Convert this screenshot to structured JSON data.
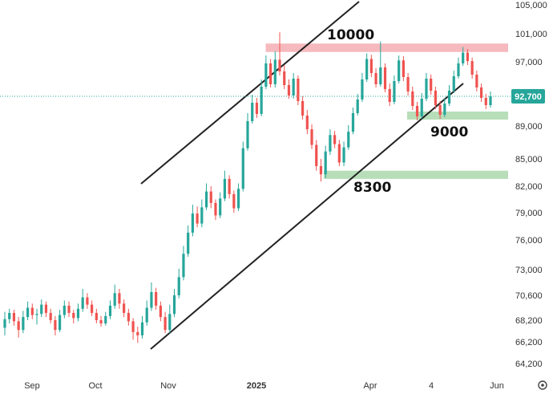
{
  "chart_data": {
    "type": "candlestick",
    "title": "",
    "xlabel": "",
    "ylabel": "",
    "ylim": [
      62000,
      106000
    ],
    "x_ticks": [
      "Sep",
      "Oct",
      "Nov",
      "2025",
      "Apr",
      "4",
      "Jun"
    ],
    "y_ticks": [
      "105,000",
      "101,000",
      "97,000",
      "92,700",
      "89,000",
      "85,000",
      "82,000",
      "79,000",
      "76,000",
      "73,000",
      "70,600",
      "68,200",
      "66,200",
      "64,200"
    ],
    "y_tick_values": [
      105000,
      101000,
      97000,
      92700,
      89000,
      85000,
      82000,
      79000,
      76000,
      73000,
      70600,
      68200,
      66200,
      64200
    ],
    "last_price": 92700,
    "last_price_label": "92,700",
    "colors": {
      "up": "#26a69a",
      "down": "#ef5350",
      "resistance": "#f4a7ad",
      "support": "#a5d6a7",
      "price_line": "#26a69a",
      "channel": "#222222"
    },
    "zones": [
      {
        "name": "resistance-zone",
        "low": 98400,
        "high": 99600,
        "kind": "resistance",
        "from": 0.52,
        "to": 1.0
      },
      {
        "name": "support-zone-9000",
        "low": 89800,
        "high": 90800,
        "kind": "support",
        "from": 0.8,
        "to": 1.0
      },
      {
        "name": "support-zone-8300",
        "low": 82800,
        "high": 83700,
        "kind": "support",
        "from": 0.635,
        "to": 1.0
      }
    ],
    "annotations": [
      "10000",
      "9000",
      "8300"
    ],
    "candles": [
      [
        67500,
        68300,
        66800,
        69000
      ],
      [
        68300,
        68900,
        67900,
        69300
      ],
      [
        68900,
        68100,
        67700,
        69200
      ],
      [
        68100,
        67300,
        66600,
        68500
      ],
      [
        67300,
        68500,
        67000,
        69100
      ],
      [
        68500,
        69400,
        68200,
        70000
      ],
      [
        69400,
        68700,
        68300,
        69800
      ],
      [
        68700,
        68800,
        67800,
        69300
      ],
      [
        68800,
        69700,
        68500,
        70200
      ],
      [
        69700,
        68900,
        68500,
        70000
      ],
      [
        68900,
        68200,
        67900,
        69300
      ],
      [
        68200,
        67300,
        66800,
        68600
      ],
      [
        67300,
        68700,
        67100,
        69200
      ],
      [
        68700,
        69600,
        68400,
        70100
      ],
      [
        69600,
        68900,
        68500,
        70000
      ],
      [
        68900,
        68400,
        67900,
        69200
      ],
      [
        68400,
        69300,
        68100,
        69800
      ],
      [
        69300,
        70400,
        69000,
        71200
      ],
      [
        70400,
        69700,
        69300,
        70800
      ],
      [
        69700,
        68900,
        68600,
        70100
      ],
      [
        68900,
        68200,
        67900,
        69300
      ],
      [
        68200,
        67900,
        67600,
        68600
      ],
      [
        67900,
        68600,
        67700,
        69000
      ],
      [
        68600,
        69600,
        68300,
        70100
      ],
      [
        69600,
        70800,
        69300,
        71600
      ],
      [
        70800,
        69800,
        69300,
        71200
      ],
      [
        69800,
        68900,
        68500,
        70200
      ],
      [
        68900,
        68100,
        67700,
        69300
      ],
      [
        68100,
        67100,
        66400,
        68400
      ],
      [
        67100,
        66800,
        66100,
        67600
      ],
      [
        66800,
        68000,
        66500,
        68600
      ],
      [
        68000,
        69400,
        67700,
        70100
      ],
      [
        69400,
        70900,
        69100,
        71800
      ],
      [
        70900,
        69600,
        69200,
        71300
      ],
      [
        69600,
        68500,
        68100,
        70000
      ],
      [
        68500,
        67300,
        67000,
        69000
      ],
      [
        67300,
        68800,
        67000,
        69700
      ],
      [
        68800,
        70600,
        68500,
        71200
      ],
      [
        70600,
        72300,
        70300,
        73100
      ],
      [
        72300,
        74600,
        72000,
        75400
      ],
      [
        74600,
        76800,
        74300,
        77600
      ],
      [
        76800,
        78900,
        76400,
        79900
      ],
      [
        78900,
        77800,
        77400,
        79700
      ],
      [
        77800,
        79600,
        77400,
        80500
      ],
      [
        79600,
        81400,
        79300,
        82300
      ],
      [
        81400,
        80100,
        79500,
        82000
      ],
      [
        80100,
        78700,
        78200,
        80500
      ],
      [
        78700,
        80600,
        78400,
        81300
      ],
      [
        80600,
        82800,
        80300,
        83700
      ],
      [
        82800,
        81100,
        80600,
        83200
      ],
      [
        81100,
        79500,
        79000,
        81500
      ],
      [
        79500,
        81700,
        79200,
        82300
      ],
      [
        81700,
        86300,
        81400,
        87100
      ],
      [
        86300,
        89600,
        86000,
        90600
      ],
      [
        89600,
        91900,
        89300,
        92900
      ],
      [
        91900,
        90500,
        90000,
        92500
      ],
      [
        90500,
        93900,
        90200,
        94800
      ],
      [
        93900,
        96800,
        93600,
        97900
      ],
      [
        96800,
        94200,
        93800,
        97400
      ],
      [
        94200,
        97300,
        93800,
        98500
      ],
      [
        97300,
        95800,
        95300,
        101200
      ],
      [
        95800,
        94100,
        93600,
        96600
      ],
      [
        94100,
        92800,
        92400,
        94800
      ],
      [
        92800,
        94900,
        92400,
        95600
      ],
      [
        94900,
        92100,
        91600,
        95300
      ],
      [
        92100,
        90300,
        89800,
        92700
      ],
      [
        90300,
        88600,
        88000,
        91000
      ],
      [
        88600,
        86700,
        86200,
        89200
      ],
      [
        86700,
        84200,
        83700,
        87300
      ],
      [
        84200,
        83300,
        82500,
        85000
      ],
      [
        83300,
        85900,
        82900,
        86600
      ],
      [
        85900,
        87900,
        85500,
        88600
      ],
      [
        87900,
        86800,
        86300,
        88400
      ],
      [
        86800,
        84600,
        84200,
        87300
      ],
      [
        84600,
        86400,
        84200,
        87100
      ],
      [
        86400,
        88300,
        86100,
        89100
      ],
      [
        88300,
        90600,
        88000,
        91300
      ],
      [
        90600,
        92300,
        90300,
        93000
      ],
      [
        92300,
        94800,
        92000,
        95600
      ],
      [
        94800,
        97400,
        94500,
        98200
      ],
      [
        97400,
        95600,
        95100,
        98000
      ],
      [
        95600,
        94200,
        93800,
        96200
      ],
      [
        94200,
        96300,
        93900,
        99900
      ],
      [
        96300,
        93600,
        93200,
        96800
      ],
      [
        93600,
        92000,
        91500,
        94300
      ],
      [
        92000,
        94600,
        91700,
        95300
      ],
      [
        94600,
        97200,
        94300,
        97900
      ],
      [
        97200,
        95100,
        94600,
        97800
      ],
      [
        95100,
        93300,
        92800,
        95600
      ],
      [
        93300,
        91500,
        91000,
        93900
      ],
      [
        91500,
        90200,
        89700,
        92000
      ],
      [
        90200,
        92400,
        89900,
        93100
      ],
      [
        92400,
        94900,
        92100,
        95600
      ],
      [
        94900,
        93400,
        92900,
        95400
      ],
      [
        93400,
        91600,
        91100,
        93900
      ],
      [
        91600,
        90400,
        89900,
        92100
      ],
      [
        90400,
        91800,
        90100,
        92500
      ],
      [
        91800,
        93400,
        91500,
        94100
      ],
      [
        93400,
        95200,
        93100,
        95900
      ],
      [
        95200,
        96800,
        94900,
        97600
      ],
      [
        96800,
        98300,
        96500,
        99100
      ],
      [
        98300,
        97100,
        96600,
        98800
      ],
      [
        97100,
        95400,
        94900,
        97600
      ],
      [
        95400,
        93800,
        93300,
        95900
      ],
      [
        93800,
        92500,
        92000,
        94300
      ],
      [
        92500,
        91600,
        91100,
        93000
      ],
      [
        91600,
        92700,
        91300,
        93300
      ]
    ]
  }
}
